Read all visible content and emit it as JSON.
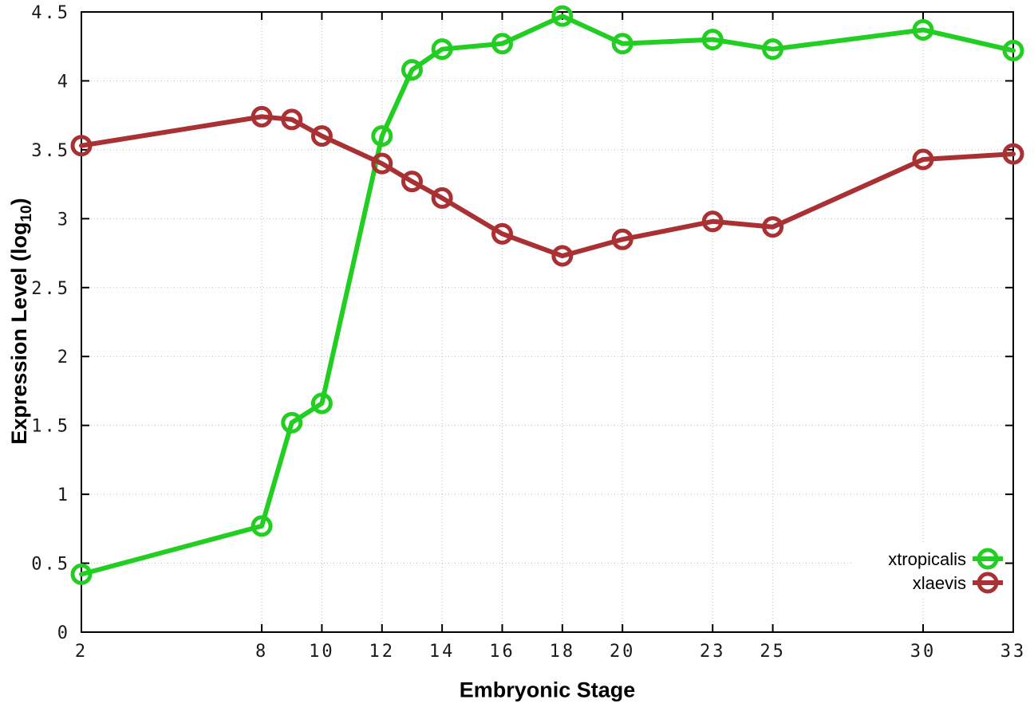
{
  "chart_data": {
    "type": "line",
    "title": "",
    "xlabel": "Embryonic Stage",
    "ylabel": "Expression Level (log10)",
    "ylabel_parts": {
      "prefix": "Expression Level (log",
      "sub": "10",
      "suffix": ")"
    },
    "x": [
      2,
      8,
      9,
      10,
      12,
      13,
      14,
      16,
      18,
      20,
      23,
      25,
      30,
      33
    ],
    "series": [
      {
        "name": "xtropicalis",
        "color": "#21CE21",
        "values": [
          0.42,
          0.77,
          1.52,
          1.66,
          3.6,
          4.08,
          4.23,
          4.27,
          4.47,
          4.27,
          4.3,
          4.23,
          4.37,
          4.22
        ]
      },
      {
        "name": "xlaevis",
        "color": "#A93134",
        "values": [
          3.53,
          3.74,
          3.72,
          3.6,
          3.4,
          3.27,
          3.15,
          2.89,
          2.73,
          2.85,
          2.98,
          2.94,
          3.43,
          3.47
        ]
      }
    ],
    "xlim": [
      2,
      33
    ],
    "ylim": [
      0,
      4.5
    ],
    "xticks": [
      2,
      8,
      10,
      12,
      14,
      16,
      18,
      20,
      23,
      25,
      30,
      33
    ],
    "yticks": [
      0,
      0.5,
      1,
      1.5,
      2,
      2.5,
      3,
      3.5,
      4,
      4.5
    ],
    "grid": true,
    "legend_position": "bottom-right",
    "marker": "open-circle",
    "style": {
      "axis_color": "#000000",
      "grid_color": "#bdbdbd",
      "tick_label_color": "#1a1a1a",
      "line_width": 6,
      "marker_radius": 11,
      "marker_stroke": 5
    }
  }
}
